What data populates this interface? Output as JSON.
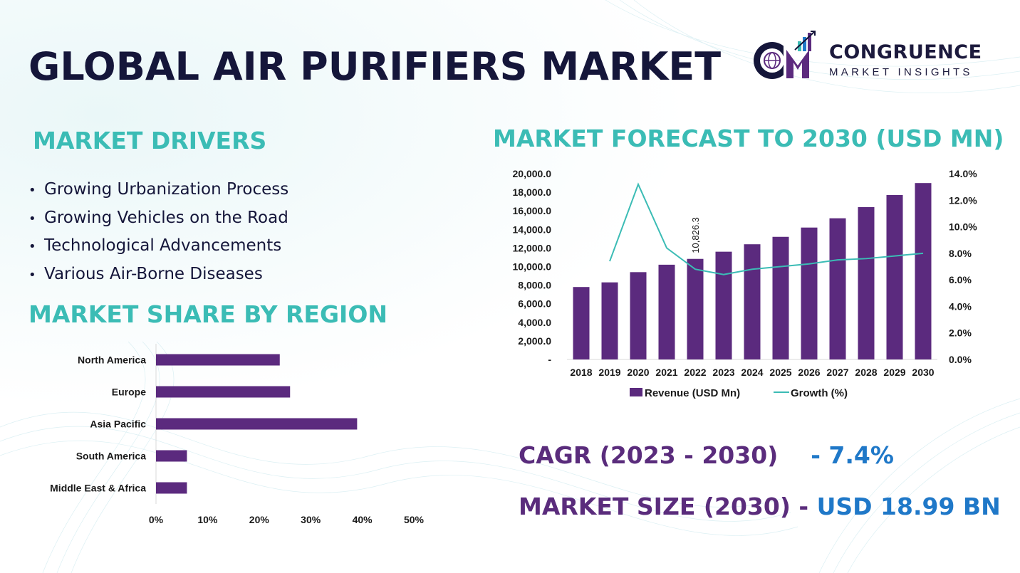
{
  "title": "GLOBAL AIR PURIFIERS MARKET",
  "logo": {
    "name": "CONGRUENCE",
    "subtitle": "MARKET INSIGHTS"
  },
  "drivers": {
    "title": "MARKET DRIVERS",
    "items": [
      "Growing Urbanization Process",
      "Growing Vehicles on the Road",
      "Technological Advancements",
      "Various Air-Borne Diseases"
    ]
  },
  "region_section_title": "MARKET SHARE BY REGION",
  "forecast_section_title": "MARKET FORECAST TO 2030 (USD MN)",
  "stats": {
    "cagr_label": "CAGR (2023 - 2030)",
    "cagr_value": "- 7.4%",
    "size_label": "MARKET SIZE (2030) -",
    "size_value": "USD 18.99 BN"
  },
  "colors": {
    "bar": "#5b2a7e",
    "line": "#3bbcb5",
    "accent_blue": "#1f78c8",
    "title_teal": "#3bbcb5"
  },
  "chart_data": [
    {
      "type": "bar",
      "orientation": "horizontal",
      "categories": [
        "North America",
        "Europe",
        "Asia Pacific",
        "South America",
        "Middle East & Africa"
      ],
      "values": [
        24,
        26,
        39,
        6,
        6
      ],
      "xlim": [
        0,
        50
      ],
      "xticks": [
        "0%",
        "10%",
        "20%",
        "30%",
        "40%",
        "50%"
      ],
      "grid": false
    },
    {
      "type": "bar",
      "categories": [
        "2018",
        "2019",
        "2020",
        "2021",
        "2022",
        "2023",
        "2024",
        "2025",
        "2026",
        "2027",
        "2028",
        "2029",
        "2030"
      ],
      "series": [
        {
          "name": "Revenue (USD Mn)",
          "type": "bar",
          "values": [
            7800,
            8300,
            9400,
            10200,
            10826.3,
            11600,
            12400,
            13200,
            14200,
            15200,
            16400,
            17700,
            18990
          ]
        },
        {
          "name": "Growth (%)",
          "type": "line",
          "axis": "right",
          "values": [
            null,
            7.4,
            13.2,
            8.4,
            6.8,
            6.4,
            6.8,
            7.0,
            7.2,
            7.5,
            7.6,
            7.8,
            8.0
          ]
        }
      ],
      "ylim_left": [
        0,
        20000
      ],
      "ylim_right": [
        0,
        14
      ],
      "yticks_left": [
        "-",
        "2,000.0",
        "4,000.0",
        "6,000.0",
        "8,000.0",
        "10,000.0",
        "12,000.0",
        "14,000.0",
        "16,000.0",
        "18,000.0",
        "20,000.0"
      ],
      "yticks_right": [
        "0.0%",
        "2.0%",
        "4.0%",
        "6.0%",
        "8.0%",
        "10.0%",
        "12.0%",
        "14.0%"
      ],
      "data_labels": [
        {
          "category": "2022",
          "text": "10,826.3"
        }
      ],
      "legend": "bottom",
      "grid": false
    }
  ]
}
